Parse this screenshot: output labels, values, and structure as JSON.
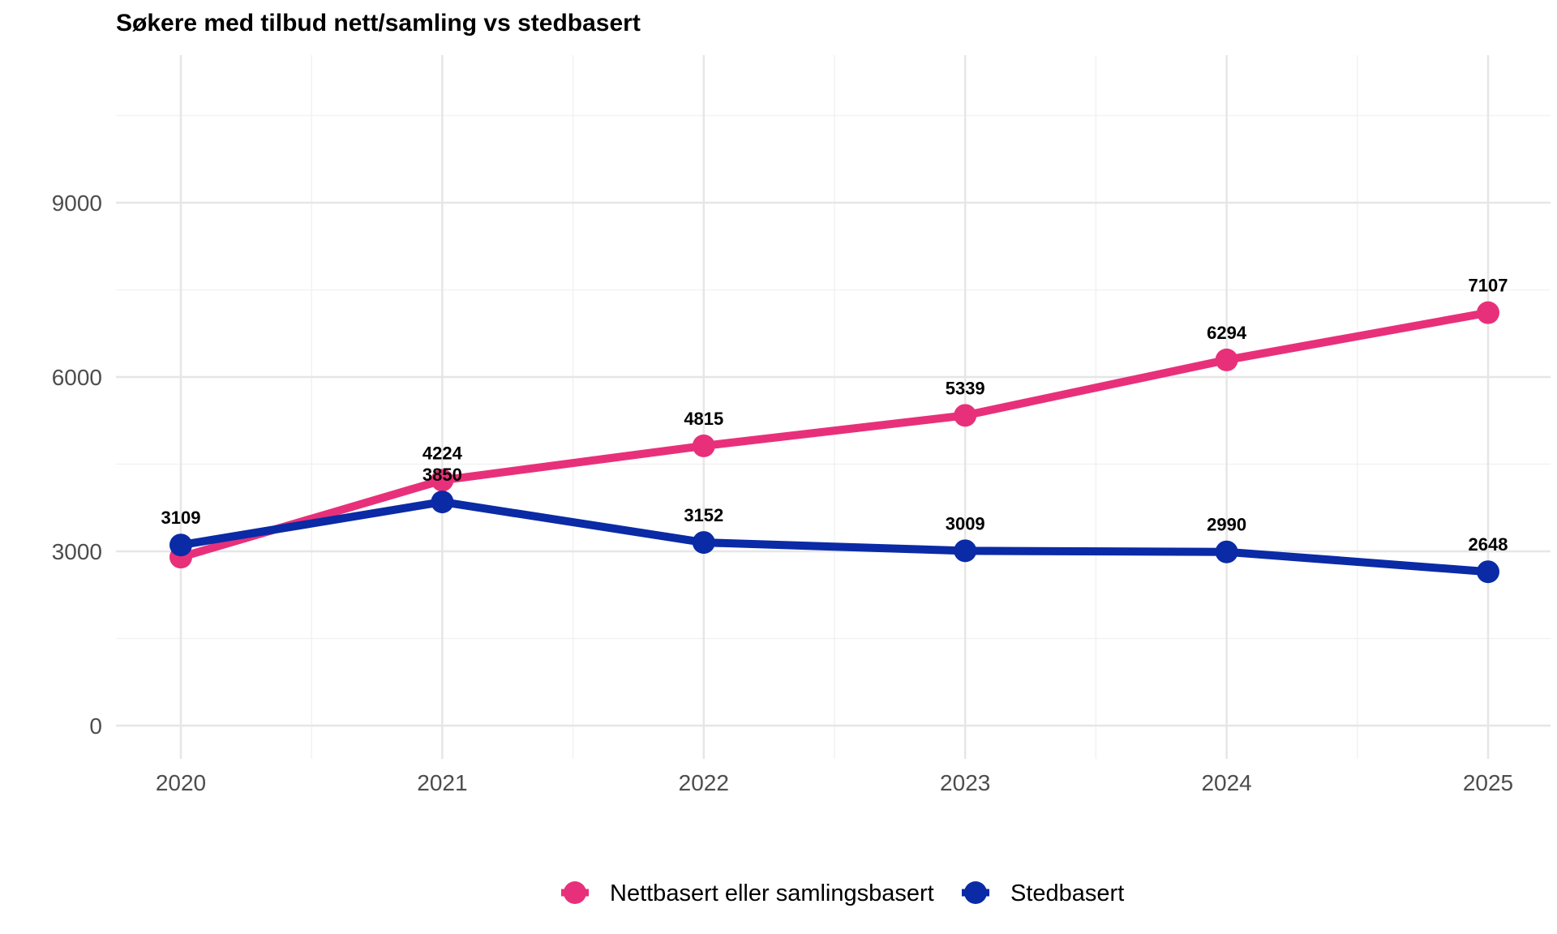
{
  "chart_data": {
    "type": "line",
    "title": "Søkere med tilbud nett/samling vs stedbasert",
    "xlabel": "",
    "ylabel": "",
    "x": [
      "2020",
      "2021",
      "2022",
      "2023",
      "2024",
      "2025"
    ],
    "ylim": [
      -700,
      11800
    ],
    "yticks": [
      0,
      3000,
      6000,
      9000
    ],
    "y_tick_labels": [
      "0",
      "3000",
      "6000",
      "9000"
    ],
    "grid": true,
    "legend_position": "bottom",
    "series": [
      {
        "name": "Nettbasert eller samlingsbasert",
        "color": "#e8307a",
        "values": [
          2900,
          4224,
          4815,
          5339,
          6294,
          7107
        ],
        "labels": [
          "",
          "4224",
          "4815",
          "5339",
          "6294",
          "7107"
        ]
      },
      {
        "name": "Stedbasert",
        "color": "#0a2aa6",
        "values": [
          3109,
          3850,
          3152,
          3009,
          2990,
          2648
        ],
        "labels": [
          "3109",
          "3850",
          "3152",
          "3009",
          "2990",
          "2648"
        ]
      }
    ]
  }
}
